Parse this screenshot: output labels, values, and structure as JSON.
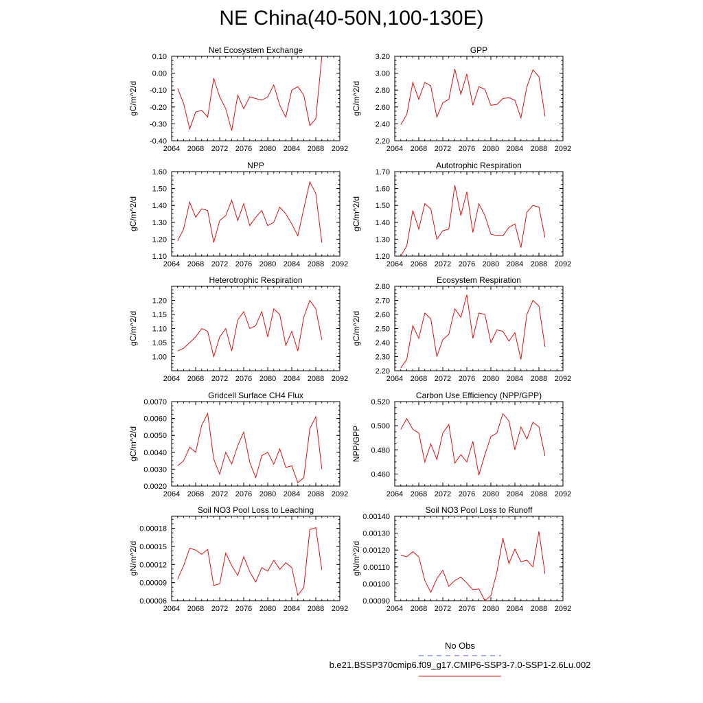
{
  "title": "NE China(40-50N,100-130E)",
  "legend": {
    "obs_label": "No Obs",
    "obs_color": "#4a5bd9",
    "case_label": "b.e21.BSSP370cmip6.f09_g17.CMIP6-SSP3-7.0-SSP1-2.6Lu.002",
    "case_color": "#e01010"
  },
  "chart_data": [
    {
      "type": "line",
      "title": "Net Ecosystem Exchange",
      "xlabel": "",
      "ylabel": "gC/m^2/d",
      "xlim": [
        2064,
        2092
      ],
      "xticks": [
        2064,
        2068,
        2072,
        2076,
        2080,
        2084,
        2088,
        2092
      ],
      "ylim": [
        -0.4,
        0.1
      ],
      "yticks": [
        "-0.40",
        "-0.30",
        "-0.20",
        "-0.10",
        "0.00",
        "0.10"
      ],
      "x": [
        2065,
        2066,
        2067,
        2068,
        2069,
        2070,
        2071,
        2072,
        2073,
        2074,
        2075,
        2076,
        2077,
        2078,
        2079,
        2080,
        2081,
        2082,
        2083,
        2084,
        2085,
        2086,
        2087,
        2088,
        2089
      ],
      "y": [
        -0.09,
        -0.18,
        -0.33,
        -0.23,
        -0.22,
        -0.26,
        -0.03,
        -0.14,
        -0.21,
        -0.34,
        -0.13,
        -0.21,
        -0.14,
        -0.15,
        -0.16,
        -0.14,
        -0.07,
        -0.19,
        -0.26,
        -0.1,
        -0.08,
        -0.13,
        -0.31,
        -0.27,
        0.1
      ]
    },
    {
      "type": "line",
      "title": "GPP",
      "xlabel": "",
      "ylabel": "gC/m^2/d",
      "xlim": [
        2064,
        2092
      ],
      "xticks": [
        2064,
        2068,
        2072,
        2076,
        2080,
        2084,
        2088,
        2092
      ],
      "ylim": [
        2.2,
        3.2
      ],
      "yticks": [
        "2.20",
        "2.40",
        "2.60",
        "2.80",
        "3.00",
        "3.20"
      ],
      "x": [
        2065,
        2066,
        2067,
        2068,
        2069,
        2070,
        2071,
        2072,
        2073,
        2074,
        2075,
        2076,
        2077,
        2078,
        2079,
        2080,
        2081,
        2082,
        2083,
        2084,
        2085,
        2086,
        2087,
        2088,
        2089
      ],
      "y": [
        2.39,
        2.51,
        2.89,
        2.69,
        2.89,
        2.85,
        2.48,
        2.65,
        2.69,
        3.05,
        2.75,
        2.99,
        2.62,
        2.84,
        2.81,
        2.62,
        2.63,
        2.7,
        2.71,
        2.68,
        2.47,
        2.84,
        3.04,
        2.96,
        2.49
      ]
    },
    {
      "type": "line",
      "title": "NPP",
      "xlabel": "",
      "ylabel": "gC/m^2/d",
      "xlim": [
        2064,
        2092
      ],
      "xticks": [
        2064,
        2068,
        2072,
        2076,
        2080,
        2084,
        2088,
        2092
      ],
      "ylim": [
        1.1,
        1.6
      ],
      "yticks": [
        "1.10",
        "1.20",
        "1.30",
        "1.40",
        "1.50",
        "1.60"
      ],
      "x": [
        2065,
        2066,
        2067,
        2068,
        2069,
        2070,
        2071,
        2072,
        2073,
        2074,
        2075,
        2076,
        2077,
        2078,
        2079,
        2080,
        2081,
        2082,
        2083,
        2084,
        2085,
        2086,
        2087,
        2088,
        2089
      ],
      "y": [
        1.19,
        1.26,
        1.42,
        1.33,
        1.38,
        1.37,
        1.18,
        1.31,
        1.34,
        1.43,
        1.31,
        1.41,
        1.28,
        1.33,
        1.37,
        1.28,
        1.3,
        1.39,
        1.35,
        1.29,
        1.22,
        1.38,
        1.54,
        1.47,
        1.18
      ]
    },
    {
      "type": "line",
      "title": "Autotrophic Respiration",
      "xlabel": "",
      "ylabel": "gC/m^2/d",
      "xlim": [
        2064,
        2092
      ],
      "xticks": [
        2064,
        2068,
        2072,
        2076,
        2080,
        2084,
        2088,
        2092
      ],
      "ylim": [
        1.2,
        1.7
      ],
      "yticks": [
        "1.20",
        "1.30",
        "1.40",
        "1.50",
        "1.60",
        "1.70"
      ],
      "x": [
        2065,
        2066,
        2067,
        2068,
        2069,
        2070,
        2071,
        2072,
        2073,
        2074,
        2075,
        2076,
        2077,
        2078,
        2079,
        2080,
        2081,
        2082,
        2083,
        2084,
        2085,
        2086,
        2087,
        2088,
        2089
      ],
      "y": [
        1.2,
        1.26,
        1.47,
        1.36,
        1.51,
        1.48,
        1.3,
        1.35,
        1.36,
        1.62,
        1.44,
        1.58,
        1.34,
        1.51,
        1.44,
        1.33,
        1.32,
        1.32,
        1.37,
        1.39,
        1.25,
        1.46,
        1.5,
        1.49,
        1.31
      ]
    },
    {
      "type": "line",
      "title": "Heterotrophic Respiration",
      "xlabel": "",
      "ylabel": "gC/m^2/d",
      "xlim": [
        2064,
        2092
      ],
      "xticks": [
        2064,
        2068,
        2072,
        2076,
        2080,
        2084,
        2088,
        2092
      ],
      "ylim": [
        0.95,
        1.25
      ],
      "yticks": [
        "1.00",
        "1.05",
        "1.10",
        "1.15",
        "1.20"
      ],
      "yticks_values": [
        1.0,
        1.05,
        1.1,
        1.15,
        1.2
      ],
      "x": [
        2065,
        2066,
        2067,
        2068,
        2069,
        2070,
        2071,
        2072,
        2073,
        2074,
        2075,
        2076,
        2077,
        2078,
        2079,
        2080,
        2081,
        2082,
        2083,
        2084,
        2085,
        2086,
        2087,
        2088,
        2089
      ],
      "y": [
        1.02,
        1.03,
        1.05,
        1.07,
        1.1,
        1.09,
        1.0,
        1.07,
        1.1,
        1.02,
        1.13,
        1.16,
        1.1,
        1.11,
        1.16,
        1.07,
        1.17,
        1.15,
        1.04,
        1.09,
        1.02,
        1.14,
        1.2,
        1.17,
        1.06
      ]
    },
    {
      "type": "line",
      "title": "Ecosystem Respiration",
      "xlabel": "",
      "ylabel": "gC/m^2/d",
      "xlim": [
        2064,
        2092
      ],
      "xticks": [
        2064,
        2068,
        2072,
        2076,
        2080,
        2084,
        2088,
        2092
      ],
      "ylim": [
        2.2,
        2.8
      ],
      "yticks": [
        "2.20",
        "2.30",
        "2.40",
        "2.50",
        "2.60",
        "2.70",
        "2.80"
      ],
      "x": [
        2065,
        2066,
        2067,
        2068,
        2069,
        2070,
        2071,
        2072,
        2073,
        2074,
        2075,
        2076,
        2077,
        2078,
        2079,
        2080,
        2081,
        2082,
        2083,
        2084,
        2085,
        2086,
        2087,
        2088,
        2089
      ],
      "y": [
        2.22,
        2.28,
        2.52,
        2.43,
        2.61,
        2.57,
        2.3,
        2.42,
        2.46,
        2.64,
        2.58,
        2.74,
        2.43,
        2.61,
        2.6,
        2.4,
        2.49,
        2.48,
        2.41,
        2.47,
        2.28,
        2.6,
        2.7,
        2.66,
        2.37
      ]
    },
    {
      "type": "line",
      "title": "Gridcell Surface CH4 Flux",
      "xlabel": "",
      "ylabel": "gC/m^2/d",
      "xlim": [
        2064,
        2092
      ],
      "xticks": [
        2064,
        2068,
        2072,
        2076,
        2080,
        2084,
        2088,
        2092
      ],
      "ylim": [
        0.002,
        0.007
      ],
      "yticks": [
        "0.0020",
        "0.0030",
        "0.0040",
        "0.0050",
        "0.0060",
        "0.0070"
      ],
      "x": [
        2065,
        2066,
        2067,
        2068,
        2069,
        2070,
        2071,
        2072,
        2073,
        2074,
        2075,
        2076,
        2077,
        2078,
        2079,
        2080,
        2081,
        2082,
        2083,
        2084,
        2085,
        2086,
        2087,
        2088,
        2089
      ],
      "y": [
        0.0032,
        0.0035,
        0.0043,
        0.004,
        0.0056,
        0.0063,
        0.0036,
        0.0027,
        0.004,
        0.0033,
        0.0044,
        0.0052,
        0.0034,
        0.0025,
        0.0038,
        0.004,
        0.0033,
        0.0042,
        0.0031,
        0.0032,
        0.0022,
        0.0025,
        0.0054,
        0.0061,
        0.003
      ]
    },
    {
      "type": "line",
      "title": "Carbon Use Efficiency (NPP/GPP)",
      "xlabel": "",
      "ylabel": "NPP/GPP",
      "xlim": [
        2064,
        2092
      ],
      "xticks": [
        2064,
        2068,
        2072,
        2076,
        2080,
        2084,
        2088,
        2092
      ],
      "ylim": [
        0.45,
        0.52
      ],
      "yticks": [
        "0.460",
        "0.480",
        "0.500",
        "0.520"
      ],
      "yticks_values": [
        0.46,
        0.48,
        0.5,
        0.52
      ],
      "x": [
        2065,
        2066,
        2067,
        2068,
        2069,
        2070,
        2071,
        2072,
        2073,
        2074,
        2075,
        2076,
        2077,
        2078,
        2079,
        2080,
        2081,
        2082,
        2083,
        2084,
        2085,
        2086,
        2087,
        2088,
        2089
      ],
      "y": [
        0.497,
        0.506,
        0.497,
        0.494,
        0.47,
        0.485,
        0.472,
        0.494,
        0.501,
        0.469,
        0.476,
        0.47,
        0.487,
        0.459,
        0.476,
        0.491,
        0.494,
        0.51,
        0.504,
        0.48,
        0.499,
        0.489,
        0.503,
        0.499,
        0.475
      ]
    },
    {
      "type": "line",
      "title": "Soil NO3 Pool Loss to Leaching",
      "xlabel": "",
      "ylabel": "gN/m^2/d",
      "xlim": [
        2064,
        2092
      ],
      "xticks": [
        2064,
        2068,
        2072,
        2076,
        2080,
        2084,
        2088,
        2092
      ],
      "ylim": [
        6e-05,
        0.0002
      ],
      "yticks": [
        "0.00006",
        "0.00009",
        "0.00012",
        "0.00015",
        "0.00018"
      ],
      "yticks_values": [
        6e-05,
        9e-05,
        0.00012,
        0.00015,
        0.00018
      ],
      "x": [
        2065,
        2066,
        2067,
        2068,
        2069,
        2070,
        2071,
        2072,
        2073,
        2074,
        2075,
        2076,
        2077,
        2078,
        2079,
        2080,
        2081,
        2082,
        2083,
        2084,
        2085,
        2086,
        2087,
        2088,
        2089
      ],
      "y": [
        9.6e-05,
        0.000118,
        0.000147,
        0.000144,
        0.000137,
        0.000145,
        8.5e-05,
        8.8e-05,
        0.000139,
        0.000118,
        0.000102,
        0.000133,
        0.000108,
        9.1e-05,
        0.000115,
        0.000109,
        0.000127,
        0.000112,
        0.000123,
        0.000115,
        6.9e-05,
        8.2e-05,
        0.000178,
        0.000181,
        0.000111
      ]
    },
    {
      "type": "line",
      "title": "Soil NO3 Pool Loss to Runoff",
      "xlabel": "",
      "ylabel": "gN/m^2/d",
      "xlim": [
        2064,
        2092
      ],
      "xticks": [
        2064,
        2068,
        2072,
        2076,
        2080,
        2084,
        2088,
        2092
      ],
      "ylim": [
        0.0009,
        0.0014
      ],
      "yticks": [
        "0.00090",
        "0.00100",
        "0.00110",
        "0.00120",
        "0.00130",
        "0.00140"
      ],
      "yticks_values": [
        0.0009,
        0.001,
        0.0011,
        0.0012,
        0.0013,
        0.0014
      ],
      "x": [
        2065,
        2066,
        2067,
        2068,
        2069,
        2070,
        2071,
        2072,
        2073,
        2074,
        2075,
        2076,
        2077,
        2078,
        2079,
        2080,
        2081,
        2082,
        2083,
        2084,
        2085,
        2086,
        2087,
        2088,
        2089
      ],
      "y": [
        0.00117,
        0.00116,
        0.00119,
        0.00116,
        0.00102,
        0.00095,
        0.00103,
        0.00108,
        0.000985,
        0.00102,
        0.00104,
        0.001005,
        0.000965,
        0.00097,
        0.0009,
        0.00093,
        0.00107,
        0.00127,
        0.00112,
        0.001205,
        0.00113,
        0.00114,
        0.0011,
        0.00131,
        0.00106
      ]
    }
  ]
}
